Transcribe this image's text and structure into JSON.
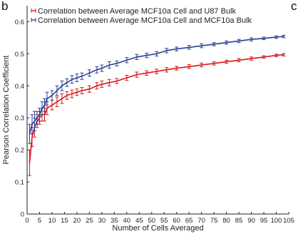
{
  "panel_labels": {
    "left": "b",
    "right": "c"
  },
  "chart_data": {
    "type": "line",
    "xlabel": "Number of Cells Averaged",
    "ylabel": "Pearson Correlation Coefficient",
    "xlim": [
      0,
      105
    ],
    "ylim": [
      0,
      0.65
    ],
    "xticks": [
      0,
      5,
      10,
      15,
      20,
      25,
      30,
      35,
      40,
      45,
      50,
      55,
      60,
      65,
      70,
      75,
      80,
      85,
      90,
      95,
      100,
      105
    ],
    "yticks": [
      0,
      0.1,
      0.2,
      0.3,
      0.4,
      0.5,
      0.6
    ],
    "ytick_labels": [
      "0",
      "0.1",
      "0.2",
      "0.3",
      "0.4",
      "0.5",
      "0.6"
    ],
    "grid": false,
    "legend_position": "top-left",
    "series": [
      {
        "name": "Correlation between Average MCF10a Cell and U87 Bulk",
        "color": "#d7191c",
        "x": [
          1,
          2,
          3,
          4,
          5,
          6,
          7,
          8,
          10,
          12,
          14,
          16,
          18,
          20,
          22,
          25,
          28,
          30,
          33,
          36,
          40,
          44,
          48,
          52,
          56,
          60,
          65,
          70,
          75,
          80,
          85,
          90,
          95,
          100,
          103
        ],
        "y": [
          0.16,
          0.24,
          0.27,
          0.29,
          0.3,
          0.31,
          0.31,
          0.33,
          0.34,
          0.35,
          0.36,
          0.37,
          0.375,
          0.38,
          0.385,
          0.39,
          0.4,
          0.405,
          0.41,
          0.415,
          0.425,
          0.435,
          0.44,
          0.445,
          0.45,
          0.455,
          0.46,
          0.465,
          0.47,
          0.475,
          0.48,
          0.485,
          0.49,
          0.495,
          0.497
        ],
        "err": [
          0.04,
          0.03,
          0.03,
          0.02,
          0.02,
          0.02,
          0.02,
          0.02,
          0.015,
          0.015,
          0.015,
          0.012,
          0.012,
          0.01,
          0.01,
          0.01,
          0.01,
          0.01,
          0.01,
          0.008,
          0.008,
          0.008,
          0.007,
          0.007,
          0.007,
          0.006,
          0.006,
          0.006,
          0.005,
          0.005,
          0.005,
          0.005,
          0.004,
          0.004,
          0.004
        ]
      },
      {
        "name": "Correlation between Average MCF10a Cell and MCF10a Bulk",
        "color": "#2c3e94",
        "x": [
          1,
          2,
          3,
          4,
          5,
          6,
          7,
          8,
          10,
          12,
          14,
          16,
          18,
          20,
          22,
          25,
          28,
          30,
          33,
          36,
          40,
          44,
          48,
          52,
          56,
          60,
          65,
          70,
          75,
          80,
          85,
          90,
          95,
          100,
          103
        ],
        "y": [
          0.25,
          0.28,
          0.29,
          0.3,
          0.31,
          0.33,
          0.34,
          0.36,
          0.37,
          0.385,
          0.4,
          0.41,
          0.42,
          0.425,
          0.43,
          0.44,
          0.45,
          0.455,
          0.465,
          0.47,
          0.48,
          0.49,
          0.495,
          0.5,
          0.51,
          0.515,
          0.52,
          0.525,
          0.53,
          0.535,
          0.54,
          0.545,
          0.548,
          0.552,
          0.554
        ],
        "err": [
          0.03,
          0.03,
          0.03,
          0.02,
          0.02,
          0.02,
          0.02,
          0.02,
          0.015,
          0.015,
          0.015,
          0.012,
          0.012,
          0.012,
          0.01,
          0.01,
          0.01,
          0.01,
          0.01,
          0.008,
          0.008,
          0.008,
          0.007,
          0.007,
          0.007,
          0.006,
          0.006,
          0.006,
          0.005,
          0.005,
          0.005,
          0.005,
          0.004,
          0.004,
          0.004
        ]
      }
    ]
  }
}
